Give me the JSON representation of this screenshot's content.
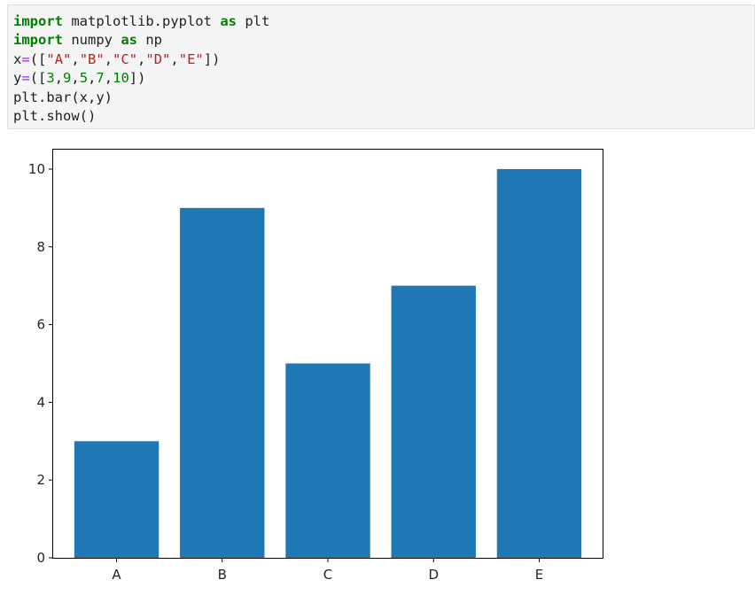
{
  "code_cell": {
    "lines": [
      [
        {
          "type": "kw",
          "text": "import"
        },
        {
          "type": "plain",
          "text": " matplotlib.pyplot "
        },
        {
          "type": "kw",
          "text": "as"
        },
        {
          "type": "plain",
          "text": " plt"
        }
      ],
      [
        {
          "type": "kw",
          "text": "import"
        },
        {
          "type": "plain",
          "text": " numpy "
        },
        {
          "type": "kw",
          "text": "as"
        },
        {
          "type": "plain",
          "text": " np"
        }
      ],
      [
        {
          "type": "plain",
          "text": "x"
        },
        {
          "type": "op",
          "text": "="
        },
        {
          "type": "plain",
          "text": "(["
        },
        {
          "type": "str",
          "text": "\"A\""
        },
        {
          "type": "plain",
          "text": ","
        },
        {
          "type": "str",
          "text": "\"B\""
        },
        {
          "type": "plain",
          "text": ","
        },
        {
          "type": "str",
          "text": "\"C\""
        },
        {
          "type": "plain",
          "text": ","
        },
        {
          "type": "str",
          "text": "\"D\""
        },
        {
          "type": "plain",
          "text": ","
        },
        {
          "type": "str",
          "text": "\"E\""
        },
        {
          "type": "plain",
          "text": "])"
        }
      ],
      [
        {
          "type": "plain",
          "text": "y"
        },
        {
          "type": "op",
          "text": "="
        },
        {
          "type": "plain",
          "text": "(["
        },
        {
          "type": "num",
          "text": "3"
        },
        {
          "type": "plain",
          "text": ","
        },
        {
          "type": "num",
          "text": "9"
        },
        {
          "type": "plain",
          "text": ","
        },
        {
          "type": "num",
          "text": "5"
        },
        {
          "type": "plain",
          "text": ","
        },
        {
          "type": "num",
          "text": "7"
        },
        {
          "type": "plain",
          "text": ","
        },
        {
          "type": "num",
          "text": "10"
        },
        {
          "type": "plain",
          "text": "])"
        }
      ],
      [
        {
          "type": "plain",
          "text": "plt.bar(x,y)"
        }
      ],
      [
        {
          "type": "plain",
          "text": "plt.show()"
        }
      ]
    ]
  },
  "chart_data": {
    "type": "bar",
    "categories": [
      "A",
      "B",
      "C",
      "D",
      "E"
    ],
    "values": [
      3,
      9,
      5,
      7,
      10
    ],
    "title": "",
    "xlabel": "",
    "ylabel": "",
    "ylim": [
      0,
      10.5
    ],
    "yticks": [
      0,
      2,
      4,
      6,
      8,
      10
    ],
    "grid": false,
    "bar_color": "#1f77b4"
  }
}
